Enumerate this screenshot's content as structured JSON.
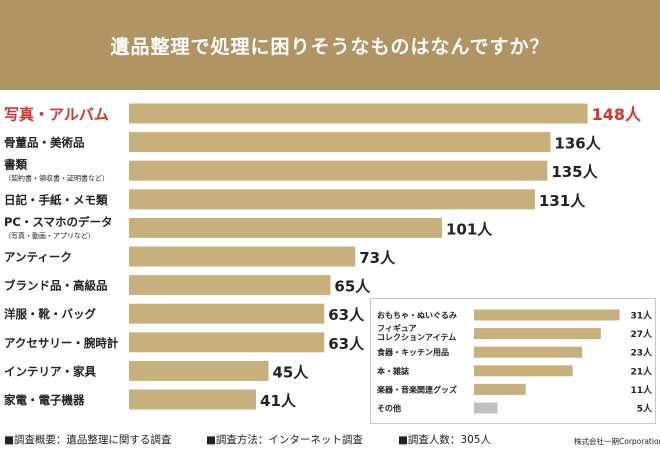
{
  "header": {
    "title": "遺品整理で処理に困りそうなものはなんですか？"
  },
  "chart_data": [
    {
      "type": "bar",
      "title": "遺品整理で処理に困りそうなものはなんですか？",
      "categories": [
        "写真・アルバム",
        "骨董品・美術品",
        "書類",
        "日記・手紙・メモ類",
        "PC・スマホのデータ",
        "アンティーク",
        "ブランド品・高級品",
        "洋服・靴・バッグ",
        "アクセサリー・腕時計",
        "インテリア・家具",
        "家電・電子機器"
      ],
      "sublabels": [
        "",
        "",
        "（契約書・領収書・証明書など）",
        "",
        "（写真・動画・アプリなど）",
        "",
        "",
        "",
        "",
        "",
        ""
      ],
      "values": [
        148,
        136,
        135,
        131,
        101,
        73,
        65,
        63,
        63,
        45,
        41
      ],
      "unit": "人",
      "xlim": [
        0,
        152
      ],
      "highlight_index": 0,
      "colors": {
        "bar": "#c7b07c",
        "highlight_text": "#d2332f",
        "text": "#222222"
      }
    },
    {
      "type": "bar",
      "categories": [
        "おもちゃ・ぬいぐるみ",
        "フィギュア\nコレクションアイテム",
        "食器・キッチン用品",
        "本・雑誌",
        "楽器・音楽関連グッズ",
        "その他"
      ],
      "values": [
        31,
        27,
        23,
        21,
        11,
        5
      ],
      "unit": "人",
      "xlim": [
        0,
        33
      ],
      "colors": {
        "bar": "#c7b07c",
        "other": "#c0c0c0"
      }
    }
  ],
  "footer": {
    "survey_overview": "■調査概要：遺品整理に関する調査",
    "survey_method": "■調査方法：インターネット調査",
    "respondents": "■調査人数：305人",
    "credit": "株式会社一期Corporation"
  }
}
